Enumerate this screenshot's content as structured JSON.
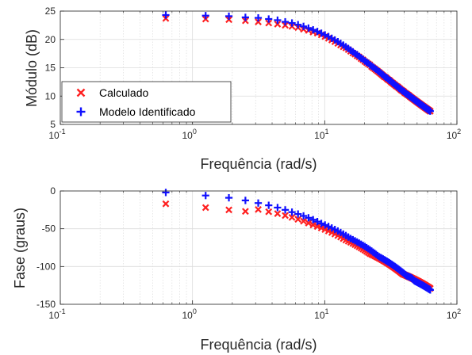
{
  "colors": {
    "calc": "#ff2020",
    "model": "#1010ff"
  },
  "chart_data": [
    {
      "type": "scatter",
      "xscale": "log",
      "xlim": [
        0.1,
        100
      ],
      "ylim": [
        5,
        25
      ],
      "xlabel": "Frequência (rad/s)",
      "ylabel": "Módulo (dB)",
      "xticks": [
        {
          "v": 0.1,
          "b": "10",
          "e": "-1"
        },
        {
          "v": 1,
          "b": "10",
          "e": "0"
        },
        {
          "v": 10,
          "b": "10",
          "e": "1"
        },
        {
          "v": 100,
          "b": "10",
          "e": "2"
        }
      ],
      "yticks": [
        {
          "v": 5,
          "t": "5"
        },
        {
          "v": 10,
          "t": "10"
        },
        {
          "v": 15,
          "t": "15"
        },
        {
          "v": 20,
          "t": "20"
        },
        {
          "v": 25,
          "t": "25"
        }
      ],
      "grid": true,
      "legend": "bottom-left",
      "legend_entries": [
        "Calculado",
        "Modelo Identificado"
      ],
      "x": [
        0.628,
        1.257,
        1.885,
        2.513,
        3.142,
        3.77,
        4.398,
        5.027,
        5.655,
        6.283,
        6.912,
        7.54,
        8.168,
        8.796,
        9.425,
        10.05,
        10.68,
        11.31,
        11.94,
        12.57,
        13.2,
        13.82,
        14.45,
        15.08,
        15.71,
        16.34,
        16.96,
        17.59,
        18.22,
        18.85,
        19.48,
        20.11,
        20.73,
        21.36,
        21.99,
        22.62,
        23.25,
        23.88,
        24.5,
        25.13,
        25.76,
        26.39,
        27.02,
        27.65,
        28.27,
        28.9,
        29.53,
        30.16,
        30.79,
        31.42,
        32.04,
        32.67,
        33.3,
        33.93,
        34.56,
        35.19,
        35.81,
        36.44,
        37.07,
        37.7,
        38.33,
        38.96,
        39.58,
        40.21,
        40.84,
        41.47,
        42.1,
        42.73,
        43.35,
        43.98,
        44.61,
        45.24,
        45.87,
        46.5,
        47.12,
        47.75,
        48.38,
        49.01,
        49.64,
        50.27,
        50.89,
        51.52,
        52.15,
        52.78,
        53.41,
        54.04,
        54.66,
        55.29,
        55.92,
        56.55,
        57.18,
        57.81,
        58.43,
        59.06,
        59.69,
        60.32,
        60.95,
        61.58,
        62.2,
        62.83
      ],
      "series": [
        {
          "name": "Calculado",
          "marker": "x",
          "values": [
            23.7,
            23.6,
            23.5,
            23.3,
            23.1,
            22.9,
            22.7,
            22.5,
            22.3,
            22.1,
            21.8,
            21.6,
            21.3,
            21.1,
            20.8,
            20.5,
            20.2,
            19.9,
            19.6,
            19.3,
            19,
            18.7,
            18.5,
            18.2,
            17.9,
            17.6,
            17.4,
            17.1,
            16.9,
            16.6,
            16.4,
            16.1,
            15.9,
            15.7,
            15.5,
            15.2,
            15,
            14.8,
            14.6,
            14.4,
            14.2,
            14,
            13.8,
            13.6,
            13.4,
            13.3,
            13.1,
            12.9,
            12.8,
            12.6,
            12.4,
            12.3,
            12.1,
            12,
            11.8,
            11.7,
            11.6,
            11.4,
            11.3,
            11.1,
            11,
            10.9,
            10.8,
            10.6,
            10.5,
            10.4,
            10.3,
            10.2,
            10.1,
            9.95,
            9.85,
            9.74,
            9.63,
            9.53,
            9.43,
            9.33,
            9.23,
            9.13,
            9.04,
            8.94,
            8.85,
            8.76,
            8.67,
            8.58,
            8.49,
            8.41,
            8.32,
            8.24,
            8.16,
            8.07,
            7.99,
            7.92,
            7.84,
            7.76,
            7.69,
            7.61,
            7.54,
            7.47,
            7.39,
            7.32
          ]
        },
        {
          "name": "Modelo Identificado",
          "marker": "+",
          "values": [
            24.3,
            24.2,
            24.1,
            23.9,
            23.8,
            23.6,
            23.4,
            23.1,
            22.9,
            22.6,
            22.3,
            22,
            21.7,
            21.4,
            21.1,
            20.8,
            20.5,
            20.2,
            19.9,
            19.6,
            19.3,
            19,
            18.7,
            18.4,
            18.1,
            17.8,
            17.5,
            17.3,
            17,
            16.7,
            16.5,
            16.2,
            16,
            15.8,
            15.5,
            15.3,
            15.1,
            14.9,
            14.7,
            14.5,
            14.3,
            14.1,
            13.9,
            13.7,
            13.5,
            13.3,
            13.2,
            13,
            12.8,
            12.7,
            12.5,
            12.3,
            12.2,
            12,
            11.9,
            11.7,
            11.6,
            11.4,
            11.3,
            11.2,
            11,
            10.9,
            10.8,
            10.7,
            10.5,
            10.4,
            10.3,
            10.2,
            10.1,
            9.97,
            9.86,
            9.76,
            9.65,
            9.55,
            9.45,
            9.35,
            9.25,
            9.15,
            9.06,
            8.96,
            8.87,
            8.78,
            8.69,
            8.6,
            8.51,
            8.43,
            8.34,
            8.26,
            8.18,
            8.09,
            8.01,
            7.94,
            7.86,
            7.78,
            7.71,
            7.63,
            7.56,
            7.49,
            7.41,
            7.34
          ]
        }
      ]
    },
    {
      "type": "scatter",
      "xscale": "log",
      "xlim": [
        0.1,
        100
      ],
      "ylim": [
        -150,
        0
      ],
      "xlabel": "Frequência (rad/s)",
      "ylabel": "Fase (graus)",
      "xticks": [
        {
          "v": 0.1,
          "b": "10",
          "e": "-1"
        },
        {
          "v": 1,
          "b": "10",
          "e": "0"
        },
        {
          "v": 10,
          "b": "10",
          "e": "1"
        },
        {
          "v": 100,
          "b": "10",
          "e": "2"
        }
      ],
      "yticks": [
        {
          "v": 0,
          "t": "0"
        },
        {
          "v": -50,
          "t": "-50"
        },
        {
          "v": -100,
          "t": "-100"
        },
        {
          "v": -150,
          "t": "-150"
        }
      ],
      "grid": true,
      "x": [
        0.628,
        1.257,
        1.885,
        2.513,
        3.142,
        3.77,
        4.398,
        5.027,
        5.655,
        6.283,
        6.912,
        7.54,
        8.168,
        8.796,
        9.425,
        10.05,
        10.68,
        11.31,
        11.94,
        12.57,
        13.2,
        13.82,
        14.45,
        15.08,
        15.71,
        16.34,
        16.96,
        17.59,
        18.22,
        18.85,
        19.48,
        20.11,
        20.73,
        21.36,
        21.99,
        22.62,
        23.25,
        23.88,
        24.5,
        25.13,
        25.76,
        26.39,
        27.02,
        27.65,
        28.27,
        28.9,
        29.53,
        30.16,
        30.79,
        31.42,
        32.04,
        32.67,
        33.3,
        33.93,
        34.56,
        35.19,
        35.81,
        36.44,
        37.07,
        37.7,
        38.33,
        38.96,
        39.58,
        40.21,
        40.84,
        41.47,
        42.1,
        42.73,
        43.35,
        43.98,
        44.61,
        45.24,
        45.87,
        46.5,
        47.12,
        47.75,
        48.38,
        49.01,
        49.64,
        50.27,
        50.89,
        51.52,
        52.15,
        52.78,
        53.41,
        54.04,
        54.66,
        55.29,
        55.92,
        56.55,
        57.18,
        57.81,
        58.43,
        59.06,
        59.69,
        60.32,
        60.95,
        61.58,
        62.2,
        62.83
      ],
      "series": [
        {
          "name": "Calculado",
          "marker": "x",
          "values": [
            -17,
            -22,
            -25,
            -27,
            -24.5,
            -27.5,
            -30,
            -32.5,
            -35,
            -37.5,
            -40,
            -42.5,
            -45,
            -47,
            -49,
            -51,
            -53,
            -55,
            -57,
            -59,
            -61,
            -63,
            -65,
            -66.5,
            -68,
            -69.5,
            -71,
            -72.5,
            -74,
            -75.5,
            -77,
            -78.5,
            -80,
            -81.5,
            -83,
            -84,
            -85,
            -86,
            -87,
            -88,
            -89,
            -90,
            -91,
            -92,
            -93,
            -94,
            -95,
            -96,
            -97,
            -98,
            -99,
            -100,
            -101,
            -102,
            -103,
            -104,
            -105,
            -106,
            -107,
            -108,
            -109,
            -110,
            -110.5,
            -111,
            -111.5,
            -112,
            -112.5,
            -113,
            -113.5,
            -114,
            -114.5,
            -115,
            -115.5,
            -116,
            -116.5,
            -117,
            -117.5,
            -118,
            -118.5,
            -119,
            -119.5,
            -120,
            -120.5,
            -121,
            -121.5,
            -122,
            -122.5,
            -123,
            -123.5,
            -124,
            -124.5,
            -125,
            -125.5,
            -126,
            -126.5,
            -127,
            -127.5,
            -128,
            -128.5,
            -129
          ]
        },
        {
          "name": "Modelo Identificado",
          "marker": "+",
          "values": [
            -2,
            -6,
            -9,
            -12.5,
            -16,
            -19,
            -22,
            -25,
            -28,
            -30.5,
            -33,
            -35.5,
            -38,
            -40.5,
            -43,
            -45,
            -47,
            -49,
            -51,
            -53,
            -55,
            -57,
            -59,
            -61,
            -63,
            -64.5,
            -66,
            -67.5,
            -69,
            -70.5,
            -72,
            -73.5,
            -75,
            -76.5,
            -78,
            -79.5,
            -81,
            -82.5,
            -84,
            -85.5,
            -87,
            -88,
            -89,
            -90,
            -91,
            -92,
            -93,
            -94,
            -95,
            -96,
            -97,
            -98,
            -99,
            -100,
            -101,
            -102,
            -103,
            -104,
            -105,
            -106,
            -107,
            -108,
            -109,
            -110,
            -111,
            -112,
            -112.5,
            -113,
            -113.5,
            -114,
            -114.5,
            -115,
            -116,
            -117,
            -118,
            -119,
            -119.5,
            -120,
            -120.5,
            -121,
            -121.5,
            -122,
            -122.5,
            -123,
            -123.5,
            -124,
            -124.5,
            -125,
            -125.5,
            -126,
            -126.5,
            -127,
            -127.5,
            -128,
            -128.5,
            -129,
            -129.5,
            -130,
            -130.5,
            -131
          ]
        }
      ]
    }
  ]
}
